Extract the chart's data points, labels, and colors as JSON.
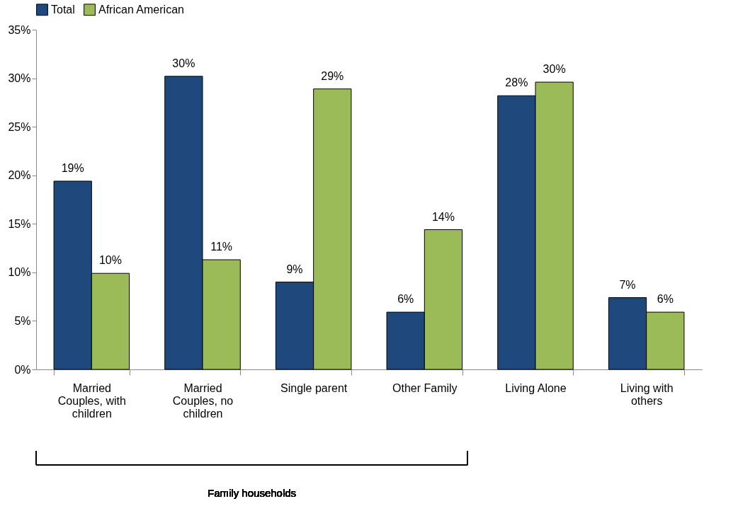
{
  "chart_data": {
    "type": "bar",
    "categories": [
      "Married Couples, with children",
      "Married Couples, no children",
      "Single parent",
      "Other Family",
      "Living Alone",
      "Living with others"
    ],
    "series": [
      {
        "name": "Total",
        "color": "#1f497d",
        "values": [
          19.4,
          30.2,
          9.0,
          5.9,
          28.2,
          7.4
        ],
        "value_labels": [
          "19%",
          "30%",
          "9%",
          "6%",
          "28%",
          "7%"
        ]
      },
      {
        "name": "African American",
        "color": "#9bbb59",
        "values": [
          9.9,
          11.3,
          28.9,
          14.4,
          29.6,
          5.9
        ],
        "value_labels": [
          "10%",
          "11%",
          "29%",
          "14%",
          "30%",
          "6%"
        ]
      }
    ],
    "ylim": [
      0,
      35
    ],
    "yticks": [
      {
        "value": 0,
        "label": "0%"
      },
      {
        "value": 5,
        "label": "5%"
      },
      {
        "value": 10,
        "label": "10%"
      },
      {
        "value": 15,
        "label": "15%"
      },
      {
        "value": 20,
        "label": "20%"
      },
      {
        "value": 25,
        "label": "25%"
      },
      {
        "value": 30,
        "label": "30%"
      },
      {
        "value": 35,
        "label": "35%"
      }
    ],
    "grid": false,
    "legend": "top",
    "annotations": [
      "Family households"
    ]
  }
}
